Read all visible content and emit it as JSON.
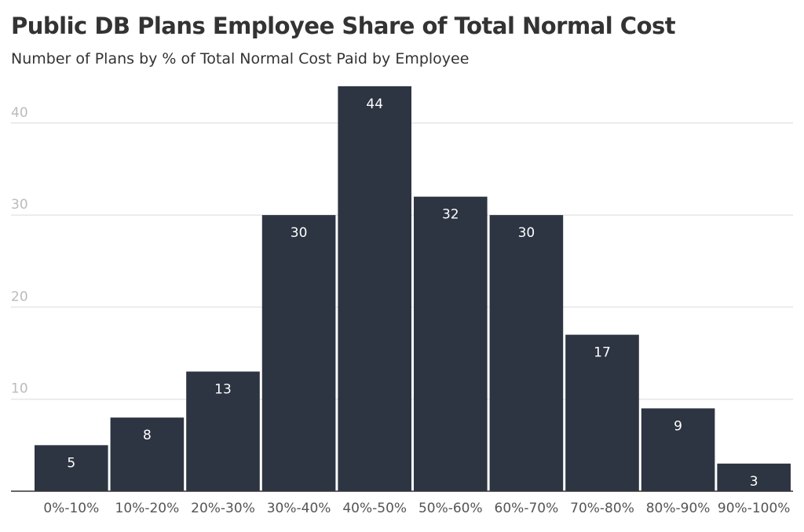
{
  "chart_data": {
    "type": "bar",
    "title": "Public DB Plans Employee Share of Total Normal Cost",
    "subtitle": "Number of Plans by % of Total Normal Cost Paid by Employee",
    "xlabel": "",
    "ylabel": "",
    "categories": [
      "0%-10%",
      "10%-20%",
      "20%-30%",
      "30%-40%",
      "40%-50%",
      "50%-60%",
      "60%-70%",
      "70%-80%",
      "80%-90%",
      "90%-100%"
    ],
    "values": [
      5,
      8,
      13,
      30,
      44,
      32,
      30,
      17,
      9,
      3
    ],
    "data_labels": [
      "5",
      "8",
      "13",
      "30",
      "44",
      "32",
      "30",
      "17",
      "9",
      "3"
    ],
    "ylim": [
      0,
      45
    ],
    "yticks": [
      10,
      20,
      30,
      40
    ],
    "ytick_labels": [
      "10",
      "20",
      "30",
      "40"
    ],
    "grid": true,
    "legend": "none",
    "colors": {
      "bar": "#2d3442",
      "bar_label_inside": "#ffffff",
      "bar_label_outside": "#999999",
      "grid": "#e6e6e6",
      "axis": "#333333",
      "ytick_text": "#bbbbbb",
      "xtick_text": "#555555"
    }
  }
}
